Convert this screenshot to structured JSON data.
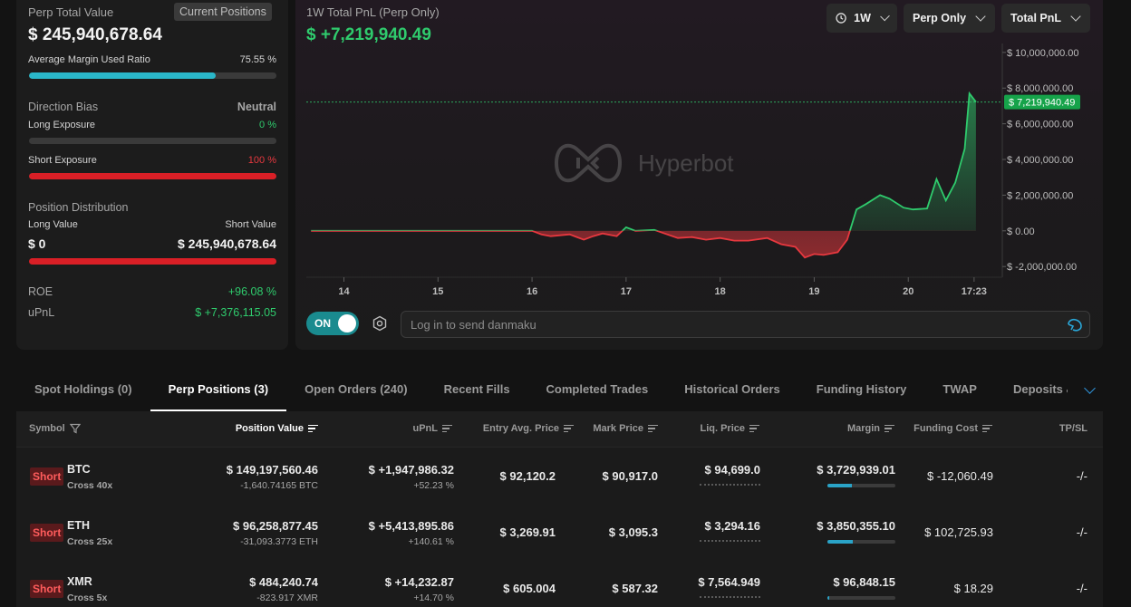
{
  "summary": {
    "perp_total_label": "Perp Total Value",
    "current_positions_label": "Current Positions",
    "perp_total_value": "$ 245,940,678.64",
    "margin_ratio_label": "Average Margin Used Ratio",
    "margin_ratio_value": "75.55 %",
    "margin_ratio_fraction": 0.7555,
    "direction_bias_label": "Direction Bias",
    "direction_bias_value": "Neutral",
    "long_exposure_label": "Long Exposure",
    "long_exposure_value": "0 %",
    "long_exposure_fraction": 0.0,
    "short_exposure_label": "Short Exposure",
    "short_exposure_value": "100 %",
    "short_exposure_fraction": 1.0,
    "position_distribution_label": "Position Distribution",
    "long_value_label": "Long Value",
    "short_value_label": "Short Value",
    "long_value": "$ 0",
    "short_value": "$ 245,940,678.64",
    "roe_label": "ROE",
    "roe_value": "+96.08 %",
    "upnl_label": "uPnL",
    "upnl_value": "$ +7,376,115.05",
    "colors": {
      "accent": "#2ab7c9",
      "green": "#2fcb6d",
      "red": "#e7383f"
    }
  },
  "chart_header": {
    "title": "1W Total PnL (Perp Only)",
    "value": "$ +7,219,940.49",
    "range_label": "1W",
    "scope_label": "Perp Only",
    "metric_label": "Total PnL",
    "watermark": "Hyperbot",
    "toggle_label": "ON",
    "danmaku_placeholder": "Log in to send danmaku"
  },
  "chart_data": {
    "type": "area",
    "title": "1W Total PnL (Perp Only)",
    "y_ticks": [
      "$ 10,000,000.00",
      "$ 8,000,000.00",
      "$ 6,000,000.00",
      "$ 4,000,000.00",
      "$ 2,000,000.00",
      "$ 0.00",
      "$ -2,000,000.00"
    ],
    "y_tick_values": [
      10000000,
      8000000,
      6000000,
      4000000,
      2000000,
      0,
      -2000000
    ],
    "ylim": [
      -2600000,
      10500000
    ],
    "x_ticks": [
      "14",
      "15",
      "16",
      "17",
      "18",
      "19",
      "20",
      "17:23"
    ],
    "x_tick_positions": [
      14.0,
      15.0,
      16.0,
      17.0,
      18.0,
      19.0,
      20.0,
      20.7
    ],
    "xlim": [
      13.6,
      21.0
    ],
    "current_value_label": "$ 7,219,940.49",
    "current_value": 7219940.49,
    "x": [
      13.65,
      14.0,
      14.5,
      15.0,
      15.5,
      16.0,
      16.1,
      16.2,
      16.4,
      16.55,
      16.65,
      16.75,
      16.9,
      17.0,
      17.1,
      17.3,
      17.55,
      17.7,
      17.85,
      18.0,
      18.15,
      18.3,
      18.5,
      18.65,
      18.8,
      18.9,
      19.0,
      19.1,
      19.25,
      19.35,
      19.45,
      19.55,
      19.7,
      19.8,
      19.95,
      20.05,
      20.2,
      20.3,
      20.4,
      20.5,
      20.6,
      20.65,
      20.72
    ],
    "y": [
      0,
      0,
      0,
      0,
      0,
      0,
      -200000,
      -300000,
      -200000,
      -500000,
      -300000,
      -150000,
      -300000,
      200000,
      0,
      50000,
      -400000,
      -350000,
      -500000,
      -400000,
      -550000,
      -550000,
      -400000,
      -750000,
      -900000,
      -1500000,
      -1300000,
      -1350000,
      -1200000,
      -500000,
      1200000,
      1500000,
      2000000,
      1800000,
      1300000,
      1200000,
      1250000,
      2900000,
      1700000,
      2700000,
      4600000,
      7700000,
      7219940
    ],
    "colors": {
      "positive": "#2fcb6d",
      "negative": "#e7383f"
    }
  },
  "tabs": [
    {
      "label": "Spot Holdings (0)",
      "active": false
    },
    {
      "label": "Perp Positions (3)",
      "active": true
    },
    {
      "label": "Open Orders (240)",
      "active": false
    },
    {
      "label": "Recent Fills",
      "active": false
    },
    {
      "label": "Completed Trades",
      "active": false
    },
    {
      "label": "Historical Orders",
      "active": false
    },
    {
      "label": "Funding History",
      "active": false
    },
    {
      "label": "TWAP",
      "active": false
    },
    {
      "label": "Deposits & Withdrawals",
      "active": false
    }
  ],
  "table": {
    "headers": {
      "symbol": "Symbol",
      "position_value": "Position Value",
      "upnl": "uPnL",
      "entry": "Entry Avg. Price",
      "mark": "Mark Price",
      "liq": "Liq. Price",
      "margin": "Margin",
      "funding": "Funding Cost",
      "tpsl": "TP/SL"
    },
    "rows": [
      {
        "side": "Short",
        "symbol": "BTC",
        "leverage": "Cross 40x",
        "position_value": "$ 149,197,560.46",
        "size": "-1,640.74165 BTC",
        "upnl": "$ +1,947,986.32",
        "upnl_pct": "+52.23 %",
        "entry": "$ 92,120.2",
        "mark": "$ 90,917.0",
        "liq": "$ 94,699.0",
        "margin": "$ 3,729,939.01",
        "margin_fraction": 0.36,
        "funding": "$ -12,060.49",
        "funding_sign": "neg",
        "tpsl": "-/-"
      },
      {
        "side": "Short",
        "symbol": "ETH",
        "leverage": "Cross 25x",
        "position_value": "$ 96,258,877.45",
        "size": "-31,093.3773 ETH",
        "upnl": "$ +5,413,895.86",
        "upnl_pct": "+140.61 %",
        "entry": "$ 3,269.91",
        "mark": "$ 3,095.3",
        "liq": "$ 3,294.16",
        "margin": "$ 3,850,355.10",
        "margin_fraction": 0.37,
        "funding": "$ 102,725.93",
        "funding_sign": "pos",
        "tpsl": "-/-"
      },
      {
        "side": "Short",
        "symbol": "XMR",
        "leverage": "Cross 5x",
        "position_value": "$ 484,240.74",
        "size": "-823.917 XMR",
        "upnl": "$ +14,232.87",
        "upnl_pct": "+14.70 %",
        "entry": "$ 605.004",
        "mark": "$ 587.32",
        "liq": "$ 7,564.949",
        "margin": "$ 96,848.15",
        "margin_fraction": 0.02,
        "funding": "$ 18.29",
        "funding_sign": "pos",
        "tpsl": "-/-"
      }
    ]
  }
}
